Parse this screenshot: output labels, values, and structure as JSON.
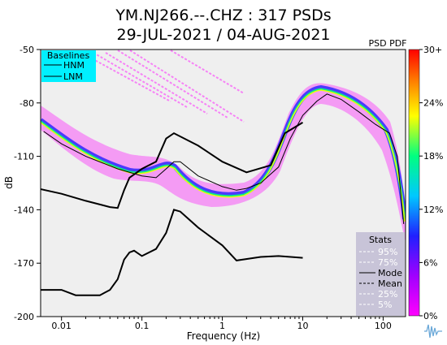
{
  "chart_data": {
    "type": "heatmap",
    "title": "YM.NJ266.--.CHZ : 317 PSDs",
    "subtitle": "29-JUL-2021 / 04-AUG-2021",
    "xlabel": "Frequency (Hz)",
    "ylabel": "dB",
    "x_scale": "log",
    "xlim": [
      0.0055,
      190
    ],
    "ylim": [
      -200,
      -50
    ],
    "x_ticks": [
      {
        "value": 0.01,
        "label": "0.01"
      },
      {
        "value": 0.1,
        "label": "0.1"
      },
      {
        "value": 1,
        "label": "1"
      },
      {
        "value": 10,
        "label": "10"
      },
      {
        "value": 100,
        "label": "100"
      }
    ],
    "y_ticks": [
      {
        "value": -50,
        "label": "-50"
      },
      {
        "value": -80,
        "label": "-80"
      },
      {
        "value": -110,
        "label": "-110"
      },
      {
        "value": -140,
        "label": "-140"
      },
      {
        "value": -170,
        "label": "-170"
      },
      {
        "value": -200,
        "label": "-200"
      }
    ],
    "colorbar": {
      "label": "PSD PDF",
      "ticks": [
        "30+",
        "24%",
        "18%",
        "12%",
        "6%",
        "0%"
      ],
      "colors": [
        "#ff00ff",
        "#2020ff",
        "#00c8ff",
        "#00ff80",
        "#ffff00",
        "#ff8000",
        "#ff0000"
      ]
    },
    "baselines": {
      "title": "Baselines",
      "items": [
        "HNM",
        "LNM"
      ]
    },
    "stats_legend": {
      "title": "Stats",
      "items": [
        "95%",
        "75%",
        "Mode",
        "Mean",
        "25%",
        "5%"
      ]
    },
    "series": [
      {
        "name": "HNM",
        "points": [
          [
            0.005,
            -128
          ],
          [
            0.01,
            -131
          ],
          [
            0.02,
            -135
          ],
          [
            0.04,
            -138.5
          ],
          [
            0.05,
            -139
          ],
          [
            0.06,
            -129
          ],
          [
            0.07,
            -122
          ],
          [
            0.1,
            -117
          ],
          [
            0.15,
            -113
          ],
          [
            0.2,
            -100
          ],
          [
            0.25,
            -97
          ],
          [
            0.5,
            -104
          ],
          [
            1,
            -113
          ],
          [
            2,
            -119
          ],
          [
            4,
            -115
          ],
          [
            6,
            -97
          ],
          [
            10,
            -91
          ]
        ]
      },
      {
        "name": "LNM",
        "points": [
          [
            0.005,
            -185
          ],
          [
            0.01,
            -185
          ],
          [
            0.015,
            -188
          ],
          [
            0.03,
            -188
          ],
          [
            0.04,
            -185
          ],
          [
            0.05,
            -179
          ],
          [
            0.06,
            -168
          ],
          [
            0.07,
            -164
          ],
          [
            0.08,
            -163
          ],
          [
            0.1,
            -166
          ],
          [
            0.15,
            -162
          ],
          [
            0.2,
            -153
          ],
          [
            0.25,
            -140
          ],
          [
            0.3,
            -141
          ],
          [
            0.5,
            -150
          ],
          [
            1,
            -160
          ],
          [
            1.5,
            -168.5
          ],
          [
            3,
            -166.5
          ],
          [
            5,
            -166
          ],
          [
            10,
            -167
          ]
        ]
      },
      {
        "name": "Mode",
        "points": [
          [
            0.006,
            -96
          ],
          [
            0.01,
            -103
          ],
          [
            0.02,
            -110
          ],
          [
            0.05,
            -117
          ],
          [
            0.1,
            -121
          ],
          [
            0.15,
            -122
          ],
          [
            0.2,
            -117
          ],
          [
            0.25,
            -113
          ],
          [
            0.3,
            -113
          ],
          [
            0.5,
            -121
          ],
          [
            1,
            -127
          ],
          [
            1.5,
            -129
          ],
          [
            2,
            -128
          ],
          [
            3,
            -125
          ],
          [
            5,
            -116
          ],
          [
            7,
            -100
          ],
          [
            10,
            -87
          ],
          [
            15,
            -79
          ],
          [
            20,
            -75
          ],
          [
            30,
            -78
          ],
          [
            50,
            -85
          ],
          [
            80,
            -92
          ],
          [
            120,
            -97
          ],
          [
            150,
            -110
          ],
          [
            180,
            -148
          ]
        ]
      }
    ]
  },
  "logo": {
    "name": "waveform-logo"
  }
}
